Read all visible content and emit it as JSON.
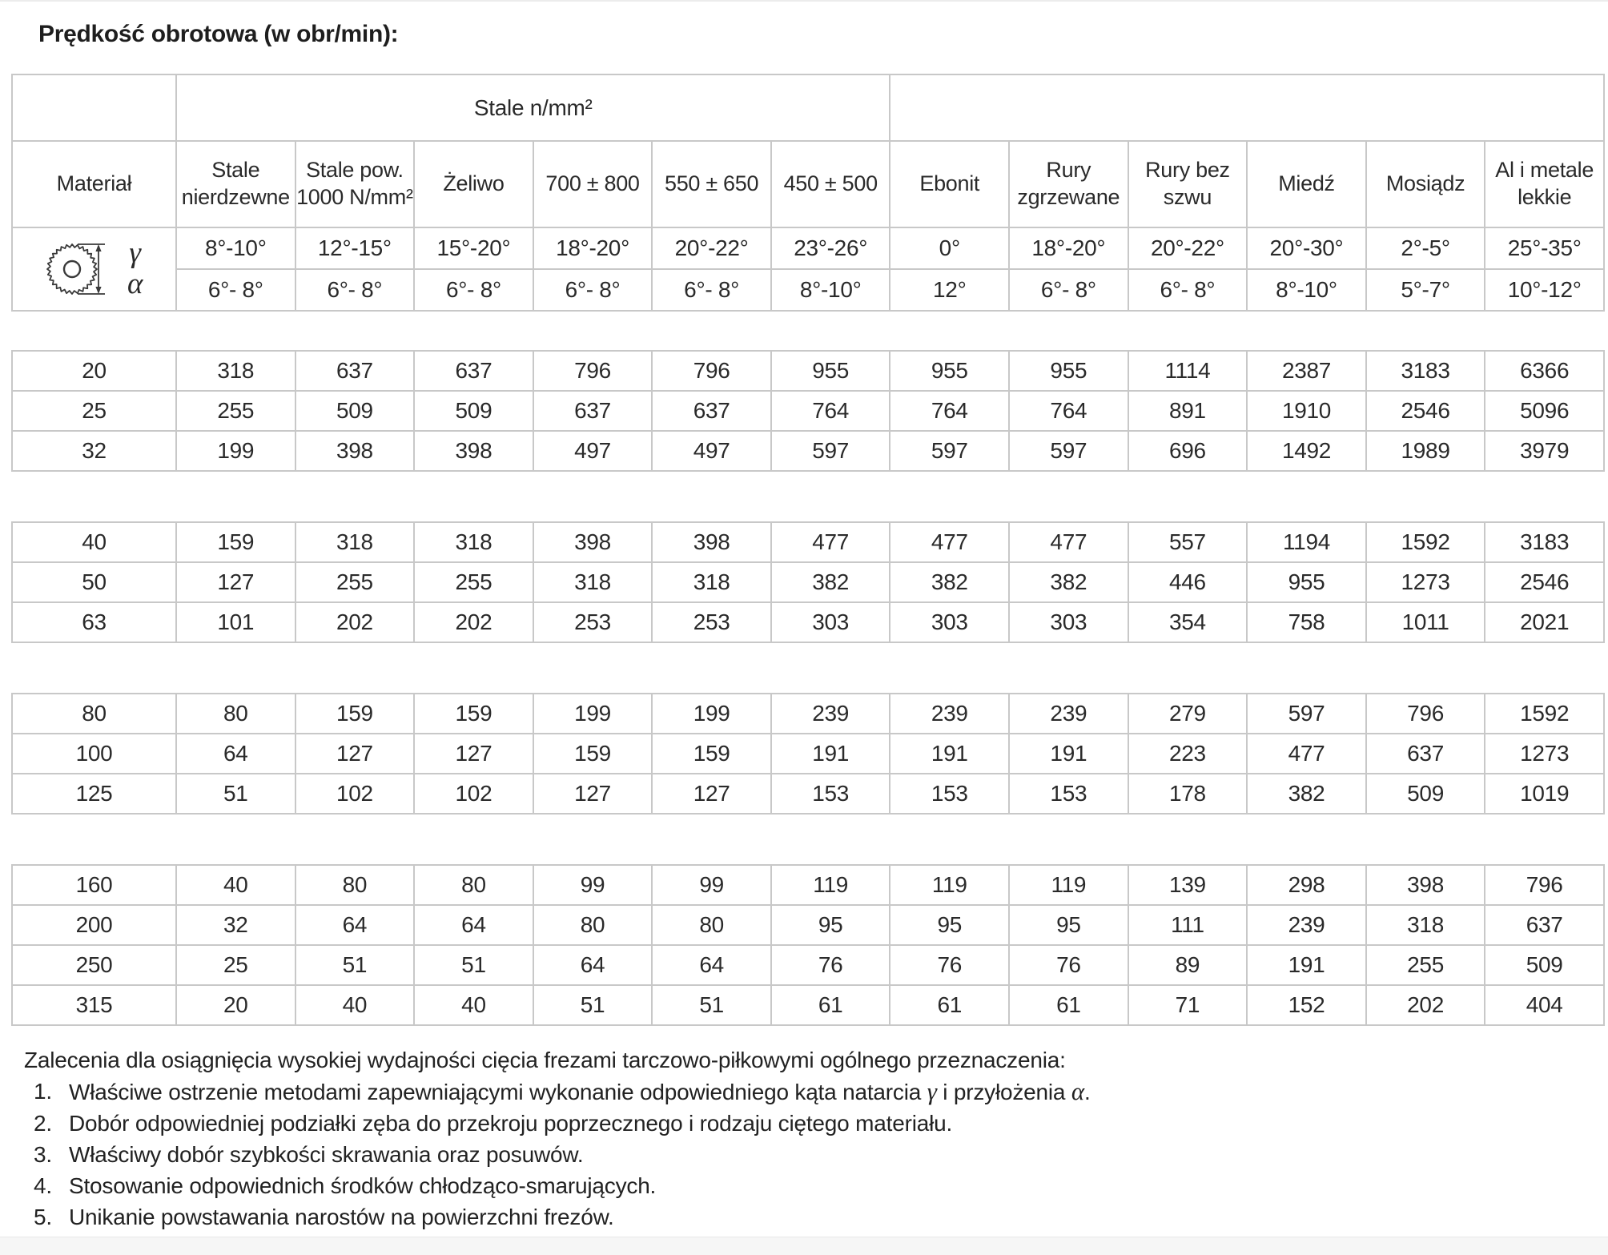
{
  "page": {
    "title": "Prędkość obrotowa (w obr/min):"
  },
  "table": {
    "span_header": "Stale n/mm²",
    "columns": [
      "Materiał",
      "Stale nierdzewne",
      "Stale pow. 1000 N/mm²",
      "Żeliwo",
      "700 ± 800",
      "550 ± 650",
      "450 ± 500",
      "Ebonit",
      "Rury zgrzewane",
      "Rury bez szwu",
      "Miedź",
      "Mosiądz",
      "Al i metale lekkie"
    ],
    "gamma_symbol": "γ",
    "alpha_symbol": "α",
    "gamma_row": [
      "8°-10°",
      "12°-15°",
      "15°-20°",
      "18°-20°",
      "20°-22°",
      "23°-26°",
      "0°",
      "18°-20°",
      "20°-22°",
      "20°-30°",
      "2°-5°",
      "25°-35°"
    ],
    "alpha_row": [
      "6°- 8°",
      "6°- 8°",
      "6°- 8°",
      "6°- 8°",
      "6°- 8°",
      "8°-10°",
      "12°",
      "6°- 8°",
      "6°- 8°",
      "8°-10°",
      "5°-7°",
      "10°-12°"
    ],
    "groups": [
      {
        "rows": [
          [
            "20",
            "318",
            "637",
            "637",
            "796",
            "796",
            "955",
            "955",
            "955",
            "1114",
            "2387",
            "3183",
            "6366"
          ],
          [
            "25",
            "255",
            "509",
            "509",
            "637",
            "637",
            "764",
            "764",
            "764",
            "891",
            "1910",
            "2546",
            "5096"
          ],
          [
            "32",
            "199",
            "398",
            "398",
            "497",
            "497",
            "597",
            "597",
            "597",
            "696",
            "1492",
            "1989",
            "3979"
          ]
        ]
      },
      {
        "rows": [
          [
            "40",
            "159",
            "318",
            "318",
            "398",
            "398",
            "477",
            "477",
            "477",
            "557",
            "1194",
            "1592",
            "3183"
          ],
          [
            "50",
            "127",
            "255",
            "255",
            "318",
            "318",
            "382",
            "382",
            "382",
            "446",
            "955",
            "1273",
            "2546"
          ],
          [
            "63",
            "101",
            "202",
            "202",
            "253",
            "253",
            "303",
            "303",
            "303",
            "354",
            "758",
            "1011",
            "2021"
          ]
        ]
      },
      {
        "rows": [
          [
            "80",
            "80",
            "159",
            "159",
            "199",
            "199",
            "239",
            "239",
            "239",
            "279",
            "597",
            "796",
            "1592"
          ],
          [
            "100",
            "64",
            "127",
            "127",
            "159",
            "159",
            "191",
            "191",
            "191",
            "223",
            "477",
            "637",
            "1273"
          ],
          [
            "125",
            "51",
            "102",
            "102",
            "127",
            "127",
            "153",
            "153",
            "153",
            "178",
            "382",
            "509",
            "1019"
          ]
        ]
      },
      {
        "rows": [
          [
            "160",
            "40",
            "80",
            "80",
            "99",
            "99",
            "119",
            "119",
            "119",
            "139",
            "298",
            "398",
            "796"
          ],
          [
            "200",
            "32",
            "64",
            "64",
            "80",
            "80",
            "95",
            "95",
            "95",
            "111",
            "239",
            "318",
            "637"
          ],
          [
            "250",
            "25",
            "51",
            "51",
            "64",
            "64",
            "76",
            "76",
            "76",
            "89",
            "191",
            "255",
            "509"
          ],
          [
            "315",
            "20",
            "40",
            "40",
            "51",
            "51",
            "61",
            "61",
            "61",
            "71",
            "152",
            "202",
            "404"
          ]
        ]
      }
    ]
  },
  "footer": {
    "intro": "Zalecenia dla osiągnięcia wysokiej wydajności cięcia frezami tarczowo-piłkowymi ogólnego przeznaczenia:",
    "items": [
      {
        "num": "1.",
        "pre": "Właściwe ostrzenie metodami zapewniającymi wykonanie odpowiedniego kąta natarcia ",
        "gamma": "γ",
        "mid": " i przyłożenia ",
        "alpha": "α",
        "post": "."
      },
      {
        "num": "2.",
        "pre": "Dobór odpowiedniej podziałki zęba do przekroju poprzecznego i rodzaju ciętego materiału."
      },
      {
        "num": "3.",
        "pre": "Właściwy dobór szybkości skrawania oraz posuwów."
      },
      {
        "num": "4.",
        "pre": "Stosowanie odpowiednich środków chłodząco-smarujących."
      },
      {
        "num": "5.",
        "pre": "Unikanie powstawania narostów na powierzchni frezów."
      }
    ]
  },
  "colors": {
    "text": "#262626",
    "title": "#1e1e1e",
    "grid_line": "#c8c8c8",
    "bottom_band": "#f6f6f6",
    "background": "#ffffff"
  }
}
